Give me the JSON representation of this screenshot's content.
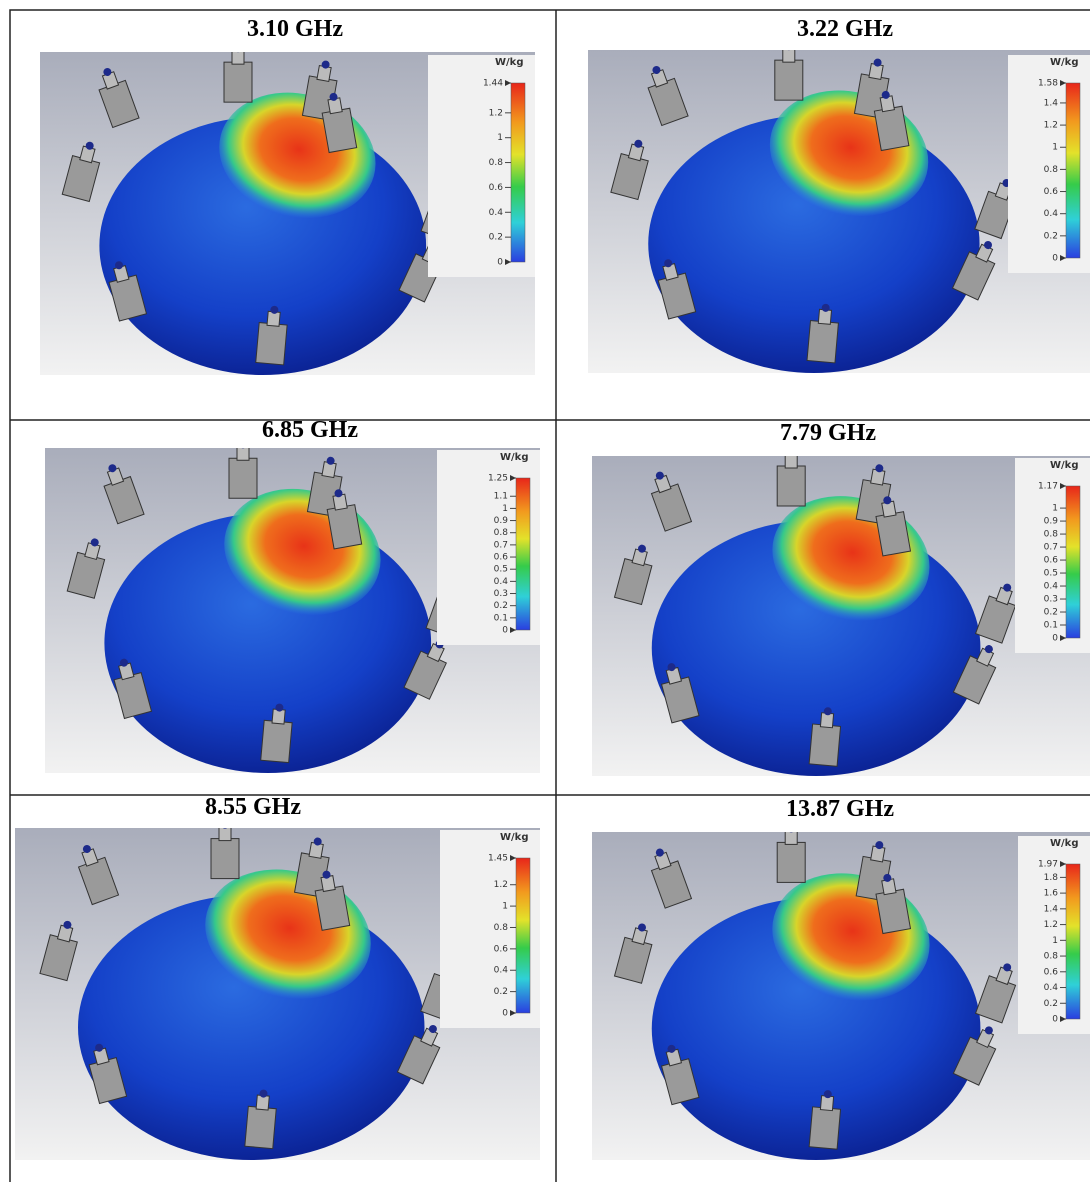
{
  "panels": [
    {
      "title": "3.10 GHz",
      "unit": "W/kg",
      "ticks": [
        1.44,
        1.2,
        1,
        0.8,
        0.6,
        0.4,
        0.2,
        0
      ]
    },
    {
      "title": "3.22 GHz",
      "unit": "W/kg",
      "ticks": [
        1.58,
        1.4,
        1.2,
        1,
        0.8,
        0.6,
        0.4,
        0.2,
        0
      ]
    },
    {
      "title": "6.85 GHz",
      "unit": "W/kg",
      "ticks": [
        1.25,
        1.1,
        1,
        0.9,
        0.8,
        0.7,
        0.6,
        0.5,
        0.4,
        0.3,
        0.2,
        0.1,
        0
      ]
    },
    {
      "title": "7.79 GHz",
      "unit": "W/kg",
      "ticks": [
        1.17,
        1,
        0.9,
        0.8,
        0.7,
        0.6,
        0.5,
        0.4,
        0.3,
        0.2,
        0.1,
        0
      ]
    },
    {
      "title": "8.55 GHz",
      "unit": "W/kg",
      "ticks": [
        1.45,
        1.2,
        1,
        0.8,
        0.6,
        0.4,
        0.2,
        0
      ]
    },
    {
      "title": "13.87 GHz",
      "unit": "W/kg",
      "ticks": [
        1.97,
        1.8,
        1.6,
        1.4,
        1.2,
        1,
        0.8,
        0.6,
        0.4,
        0.2,
        0
      ]
    }
  ]
}
